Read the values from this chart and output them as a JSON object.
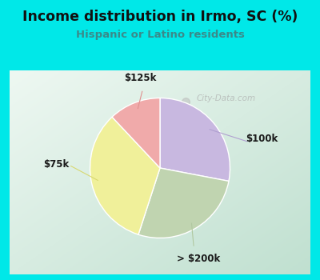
{
  "title": "Income distribution in Irmo, SC (%)",
  "subtitle": "Hispanic or Latino residents",
  "slices": [
    {
      "label": "$100k",
      "value": 28,
      "color": "#c8b8e0"
    },
    {
      "label": "> $200k",
      "value": 27,
      "color": "#c0d4b0"
    },
    {
      "label": "$75k",
      "value": 33,
      "color": "#f0f09a"
    },
    {
      "label": "$125k",
      "value": 12,
      "color": "#f0aaaa"
    }
  ],
  "startangle": 90,
  "bg_outer": "#00e8e8",
  "bg_inner_topleft": "#f0f8f0",
  "bg_inner_bottomright": "#c8e8d8",
  "watermark": "City-Data.com",
  "title_color": "#111111",
  "subtitle_color": "#3a8a8a",
  "label_colors": {
    "$100k": "#c8b8e0",
    "> $200k": "#c0d4b0",
    "$75k": "#e8e878",
    "$125k": "#f0aaaa"
  }
}
